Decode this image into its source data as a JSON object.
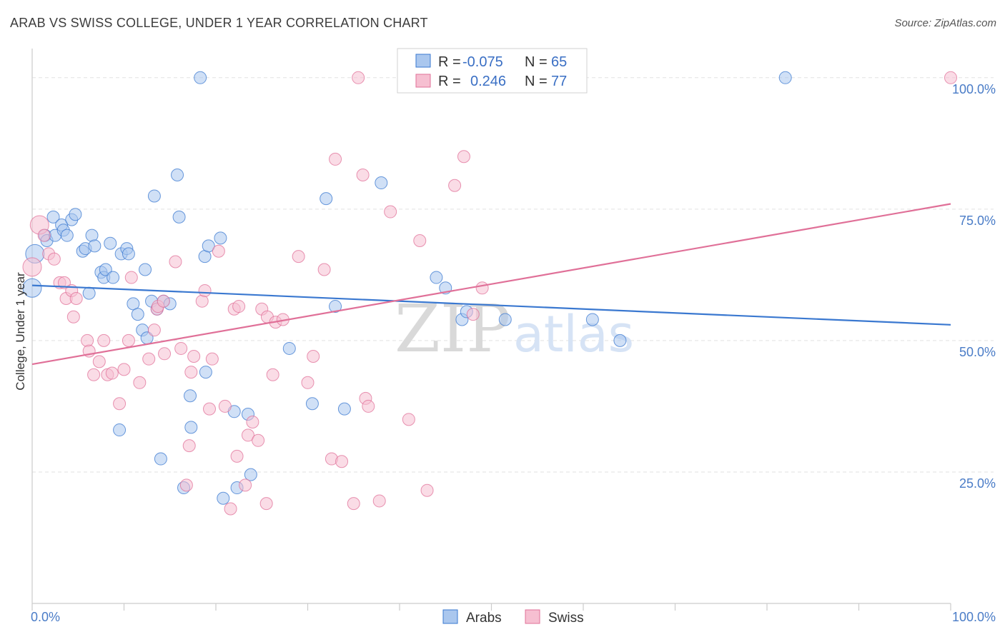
{
  "title": "ARAB VS SWISS COLLEGE, UNDER 1 YEAR CORRELATION CHART",
  "source": "Source: ZipAtlas.com",
  "watermark": {
    "zip": "ZIP",
    "atlas": "atlas"
  },
  "colors": {
    "arabs": "#3a78d0",
    "swiss": "#e07098",
    "arabs_fill": "#aac7ee",
    "swiss_fill": "#f6bfd1"
  },
  "legend": {
    "arabs": {
      "r_label": "R =",
      "r_value": "-0.075",
      "n_label": "N =",
      "n_value": "65"
    },
    "swiss": {
      "r_label": "R =",
      "r_value": "0.246",
      "n_label": "N =",
      "n_value": "77"
    }
  },
  "chart_data": {
    "type": "scatter",
    "ylabel": "College, Under 1 year",
    "x_ticks": [
      "0.0%",
      "100.0%"
    ],
    "y_ticks": [
      "100.0%",
      "75.0%",
      "50.0%",
      "25.0%"
    ],
    "xlim": [
      0,
      100
    ],
    "ylim": [
      0,
      105
    ],
    "grid": true,
    "legend_position": "top-center",
    "series": [
      {
        "name": "Arabs",
        "trend": {
          "x": [
            0,
            100
          ],
          "y": [
            60.5,
            53.0
          ]
        },
        "points": [
          [
            0,
            60
          ],
          [
            0.3,
            66.5
          ],
          [
            1.4,
            70
          ],
          [
            1.6,
            69
          ],
          [
            2.3,
            73.5
          ],
          [
            2.5,
            70
          ],
          [
            3.2,
            72
          ],
          [
            3.4,
            71
          ],
          [
            3.8,
            70
          ],
          [
            4.3,
            73
          ],
          [
            4.7,
            74
          ],
          [
            5.5,
            67
          ],
          [
            5.8,
            67.5
          ],
          [
            6.2,
            59
          ],
          [
            6.5,
            70
          ],
          [
            6.8,
            68
          ],
          [
            7.5,
            63
          ],
          [
            7.8,
            62
          ],
          [
            8.0,
            63.5
          ],
          [
            8.5,
            68.5
          ],
          [
            8.8,
            62
          ],
          [
            9.5,
            33
          ],
          [
            9.7,
            66.5
          ],
          [
            10.3,
            67.5
          ],
          [
            10.5,
            66.5
          ],
          [
            11.0,
            57
          ],
          [
            11.5,
            55
          ],
          [
            12.0,
            52
          ],
          [
            12.3,
            63.5
          ],
          [
            12.5,
            50.5
          ],
          [
            13.0,
            57.5
          ],
          [
            13.3,
            77.5
          ],
          [
            13.6,
            56
          ],
          [
            14.0,
            27.5
          ],
          [
            14.3,
            57.5
          ],
          [
            15.0,
            57
          ],
          [
            15.8,
            81.5
          ],
          [
            16.0,
            73.5
          ],
          [
            16.5,
            22
          ],
          [
            17.2,
            39.5
          ],
          [
            17.3,
            33.5
          ],
          [
            18.3,
            100
          ],
          [
            18.8,
            66
          ],
          [
            18.9,
            44
          ],
          [
            19.2,
            68
          ],
          [
            20.5,
            69.5
          ],
          [
            20.8,
            20
          ],
          [
            22.0,
            36.5
          ],
          [
            22.3,
            22
          ],
          [
            23.5,
            36
          ],
          [
            23.8,
            24.5
          ],
          [
            28.0,
            48.5
          ],
          [
            30.5,
            38
          ],
          [
            32.0,
            77
          ],
          [
            33.0,
            56.5
          ],
          [
            34.0,
            37
          ],
          [
            38.0,
            80
          ],
          [
            44.0,
            62
          ],
          [
            45.0,
            60
          ],
          [
            46.8,
            54
          ],
          [
            47.3,
            55.5
          ],
          [
            51.5,
            54
          ],
          [
            61.0,
            54
          ],
          [
            64.0,
            50
          ],
          [
            82.0,
            100
          ]
        ]
      },
      {
        "name": "Swiss",
        "trend": {
          "x": [
            0,
            100
          ],
          "y": [
            45.5,
            76.0
          ]
        },
        "points": [
          [
            0,
            64
          ],
          [
            0.8,
            72
          ],
          [
            1.3,
            70
          ],
          [
            1.8,
            66.5
          ],
          [
            2.4,
            65.5
          ],
          [
            3.0,
            61
          ],
          [
            3.5,
            61
          ],
          [
            3.7,
            58
          ],
          [
            4.3,
            59.5
          ],
          [
            4.8,
            58
          ],
          [
            4.5,
            54.5
          ],
          [
            6.0,
            50
          ],
          [
            6.2,
            48
          ],
          [
            6.7,
            43.5
          ],
          [
            7.3,
            46
          ],
          [
            7.8,
            50
          ],
          [
            8.2,
            43.5
          ],
          [
            8.7,
            43.8
          ],
          [
            9.5,
            38
          ],
          [
            10.0,
            44.5
          ],
          [
            10.5,
            50
          ],
          [
            10.8,
            62
          ],
          [
            11.7,
            42
          ],
          [
            12.7,
            46.5
          ],
          [
            13.3,
            52
          ],
          [
            13.6,
            56
          ],
          [
            13.7,
            56.5
          ],
          [
            14.3,
            57.5
          ],
          [
            14.4,
            47.5
          ],
          [
            15.6,
            65
          ],
          [
            16.2,
            48.5
          ],
          [
            16.8,
            22.5
          ],
          [
            17.1,
            30
          ],
          [
            17.3,
            44
          ],
          [
            17.6,
            47
          ],
          [
            18.5,
            57.5
          ],
          [
            18.8,
            59.5
          ],
          [
            19.3,
            37
          ],
          [
            19.6,
            46.5
          ],
          [
            20.3,
            67
          ],
          [
            21.0,
            37.5
          ],
          [
            21.6,
            18
          ],
          [
            22.0,
            56
          ],
          [
            22.3,
            28
          ],
          [
            22.5,
            56.5
          ],
          [
            23.2,
            22.5
          ],
          [
            23.5,
            32
          ],
          [
            24.0,
            34.5
          ],
          [
            24.6,
            31
          ],
          [
            25.0,
            56
          ],
          [
            25.5,
            19
          ],
          [
            25.6,
            54.5
          ],
          [
            26.2,
            43.5
          ],
          [
            26.5,
            53.5
          ],
          [
            27.3,
            54
          ],
          [
            29.0,
            66
          ],
          [
            30.0,
            42
          ],
          [
            30.6,
            47
          ],
          [
            31.8,
            63.5
          ],
          [
            32.6,
            27.5
          ],
          [
            33.0,
            84.5
          ],
          [
            33.7,
            27
          ],
          [
            35.0,
            19
          ],
          [
            35.5,
            100
          ],
          [
            36.0,
            81.5
          ],
          [
            36.3,
            39
          ],
          [
            36.6,
            37.5
          ],
          [
            37.8,
            19.5
          ],
          [
            39.0,
            74.5
          ],
          [
            41.0,
            35
          ],
          [
            42.2,
            69
          ],
          [
            43.0,
            21.5
          ],
          [
            46.0,
            79.5
          ],
          [
            47.0,
            85
          ],
          [
            48.0,
            55
          ],
          [
            49.0,
            60
          ],
          [
            100.0,
            100
          ]
        ]
      }
    ]
  },
  "bottom_legend": {
    "arabs": "Arabs",
    "swiss": "Swiss"
  }
}
